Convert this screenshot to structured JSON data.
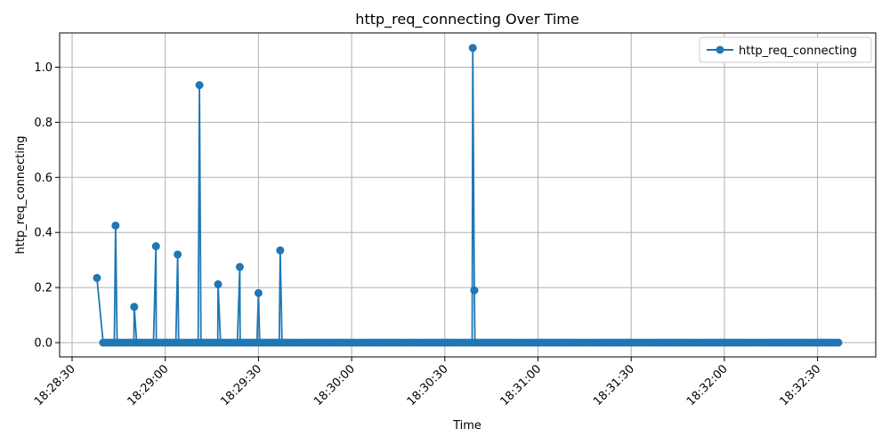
{
  "chart_data": {
    "type": "line",
    "title": "http_req_connecting Over Time",
    "xlabel": "Time",
    "ylabel": "http_req_connecting",
    "xlim": [
      "18:28:30",
      "18:32:30"
    ],
    "ylim": [
      -0.05,
      1.13
    ],
    "grid": true,
    "legend_position": "top-right",
    "x_ticks": [
      "18:28:30",
      "18:29:00",
      "18:29:30",
      "18:30:00",
      "18:30:30",
      "18:31:00",
      "18:31:30",
      "18:32:00",
      "18:32:30"
    ],
    "y_ticks": [
      "0.0",
      "0.2",
      "0.4",
      "0.6",
      "0.8",
      "1.0"
    ],
    "series": [
      {
        "name": "http_req_connecting",
        "color": "#1f77b4",
        "spikes": [
          {
            "t": "18:28:38",
            "v": 0.235
          },
          {
            "t": "18:28:44",
            "v": 0.425
          },
          {
            "t": "18:28:50",
            "v": 0.13
          },
          {
            "t": "18:28:57",
            "v": 0.35
          },
          {
            "t": "18:29:04",
            "v": 0.32
          },
          {
            "t": "18:29:11",
            "v": 0.935
          },
          {
            "t": "18:29:17",
            "v": 0.212
          },
          {
            "t": "18:29:24",
            "v": 0.275
          },
          {
            "t": "18:29:30",
            "v": 0.18
          },
          {
            "t": "18:29:37",
            "v": 0.335
          },
          {
            "t": "18:30:39",
            "v": 1.07
          },
          {
            "t": "18:30:39.5",
            "v": 0.19
          }
        ],
        "baseline": 0.0,
        "baseline_range": [
          "18:28:40",
          "18:32:37"
        ]
      }
    ]
  }
}
